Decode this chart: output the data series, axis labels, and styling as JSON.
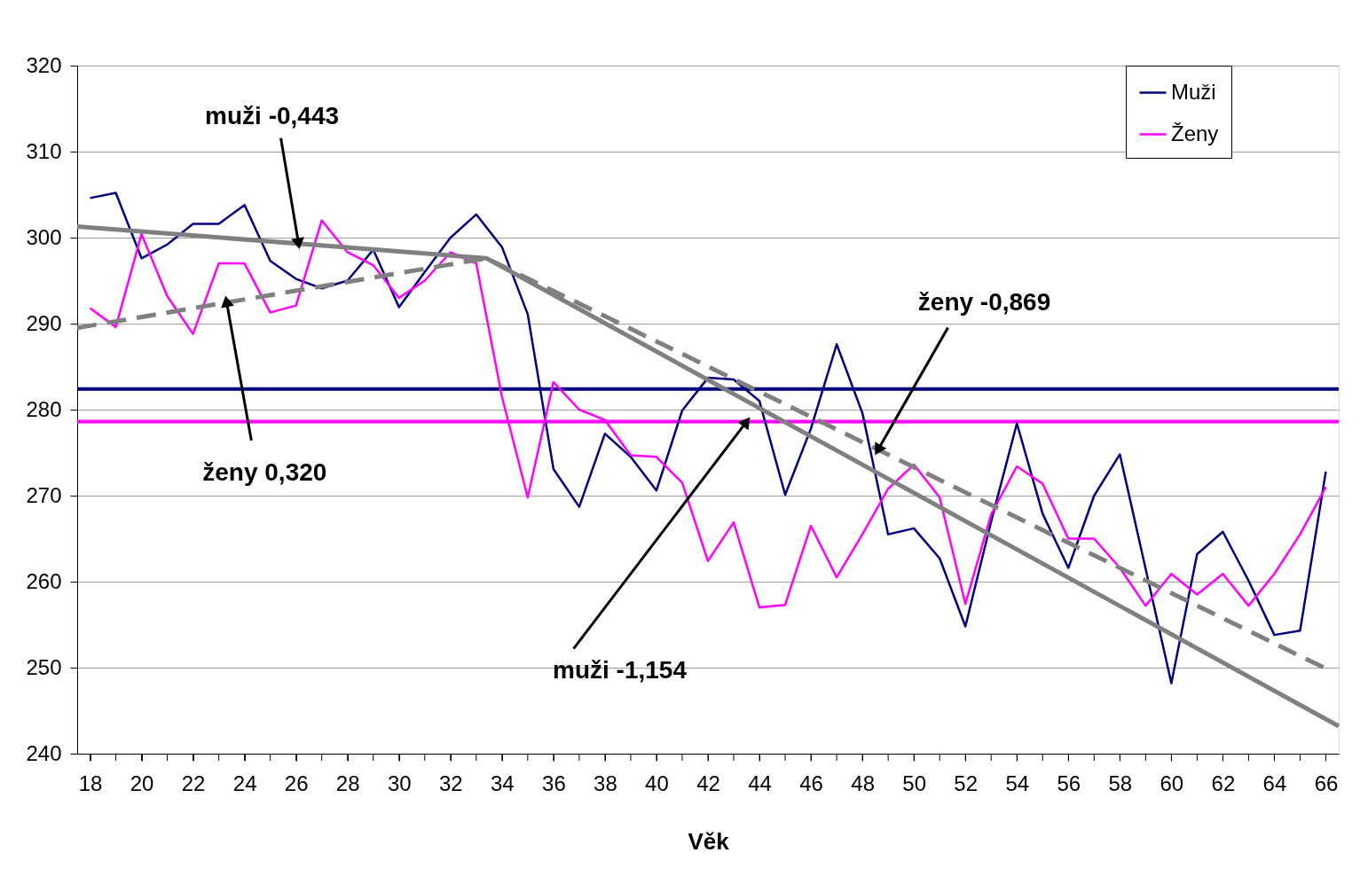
{
  "chart_data": {
    "type": "line",
    "xlabel": "Věk",
    "x": [
      18,
      19,
      20,
      21,
      22,
      23,
      24,
      25,
      26,
      27,
      28,
      29,
      30,
      31,
      32,
      33,
      34,
      35,
      36,
      37,
      38,
      39,
      40,
      41,
      42,
      43,
      44,
      45,
      46,
      47,
      48,
      49,
      50,
      51,
      52,
      53,
      54,
      55,
      56,
      57,
      58,
      59,
      60,
      61,
      62,
      63,
      64,
      65,
      66
    ],
    "series": [
      {
        "name": "Muži",
        "color": "#000080",
        "line_style": "solid",
        "values": [
          304.6,
          305.2,
          297.6,
          299.2,
          301.6,
          301.6,
          303.8,
          297.3,
          295.2,
          294.1,
          295.0,
          298.6,
          291.9,
          296.0,
          300.0,
          302.7,
          298.9,
          291.1,
          273.1,
          268.7,
          277.2,
          274.5,
          270.6,
          279.9,
          283.7,
          283.5,
          281.0,
          270.1,
          277.8,
          287.6,
          279.6,
          265.5,
          266.2,
          262.7,
          254.8,
          267.0,
          278.4,
          267.9,
          261.6,
          270.0,
          274.8,
          261.5,
          248.2,
          263.2,
          265.8,
          260.1,
          253.8,
          254.3,
          272.8
        ]
      },
      {
        "name": "Ženy",
        "color": "#ff00ff",
        "line_style": "solid",
        "values": [
          291.8,
          289.6,
          300.4,
          293.2,
          288.8,
          297.0,
          297.0,
          291.3,
          292.1,
          302.0,
          298.3,
          296.8,
          293.0,
          295.0,
          298.3,
          297.0,
          281.5,
          269.8,
          283.2,
          280.0,
          278.8,
          274.7,
          274.5,
          271.5,
          262.4,
          266.9,
          257.0,
          257.3,
          266.5,
          260.5,
          265.5,
          270.8,
          273.6,
          269.8,
          257.4,
          267.8,
          273.4,
          271.4,
          265.0,
          265.0,
          261.6,
          257.2,
          260.9,
          258.5,
          260.9,
          257.2,
          260.9,
          265.5,
          271.0
        ]
      },
      {
        "type": "line",
        "color": "#808080",
        "line_style": "solid",
        "x": [
          17.5,
          33.4,
          66.5
        ],
        "values": [
          301.3,
          297.6,
          243.2
        ]
      },
      {
        "type": "line",
        "color": "#808080",
        "line_style": "dashed",
        "x": [
          17.5,
          33.4,
          66.2
        ],
        "values": [
          289.5,
          297.6,
          249.6
        ]
      }
    ],
    "ref_lines": [
      {
        "axis": "y",
        "value": 282.4,
        "color": "#000080"
      },
      {
        "axis": "y",
        "value": 278.6,
        "color": "#ff00ff"
      }
    ],
    "annotations": [
      {
        "text": "muži -0,443",
        "x": 26.1,
        "y": 299.3
      },
      {
        "text": "ženy 0,320",
        "x": 23.3,
        "y": 292.6
      },
      {
        "text": "muži -1,154",
        "x": 43.5,
        "y": 278.6
      },
      {
        "text": "ženy -0,869",
        "x": 48.6,
        "y": 275.3
      }
    ],
    "xlim": [
      17.5,
      66.5
    ],
    "xticks": [
      18,
      {
        "value": 19,
        "label": null
      },
      20,
      {
        "value": 21,
        "label": null
      },
      22,
      {
        "value": 23,
        "label": null
      },
      24,
      {
        "value": 25,
        "label": null
      },
      26,
      {
        "value": 27,
        "label": null
      },
      28,
      {
        "value": 29,
        "label": null
      },
      30,
      {
        "value": 31,
        "label": null
      },
      32,
      {
        "value": 33,
        "label": null
      },
      34,
      {
        "value": 35,
        "label": null
      },
      36,
      {
        "value": 37,
        "label": null
      },
      38,
      {
        "value": 39,
        "label": null
      },
      40,
      {
        "value": 41,
        "label": null
      },
      42,
      {
        "value": 43,
        "label": null
      },
      44,
      {
        "value": 45,
        "label": null
      },
      46,
      {
        "value": 47,
        "label": null
      },
      48,
      {
        "value": 49,
        "label": null
      },
      50,
      {
        "value": 51,
        "label": null
      },
      52,
      {
        "value": 53,
        "label": null
      },
      54,
      {
        "value": 55,
        "label": null
      },
      56,
      {
        "value": 57,
        "label": null
      },
      58,
      {
        "value": 59,
        "label": null
      },
      60,
      {
        "value": 61,
        "label": null
      },
      62,
      {
        "value": 63,
        "label": null
      },
      64,
      {
        "value": 65,
        "label": null
      },
      66
    ],
    "ylim": [
      240,
      320
    ],
    "yticks": [
      240,
      250,
      260,
      270,
      280,
      290,
      300,
      310,
      320
    ],
    "grid": "y",
    "legend": "top right",
    "marker": "none"
  }
}
